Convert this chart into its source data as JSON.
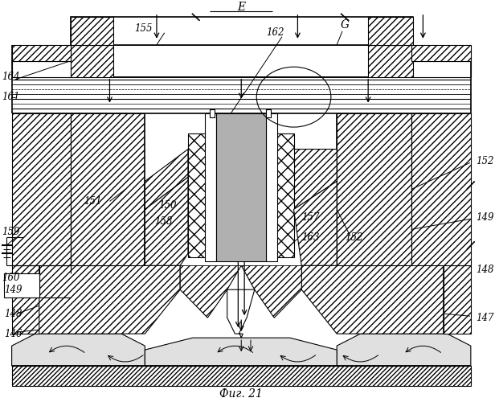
{
  "bg_color": "#ffffff",
  "figsize": [
    6.16,
    5.0
  ],
  "dpi": 100,
  "caption": "Фиг. 21"
}
